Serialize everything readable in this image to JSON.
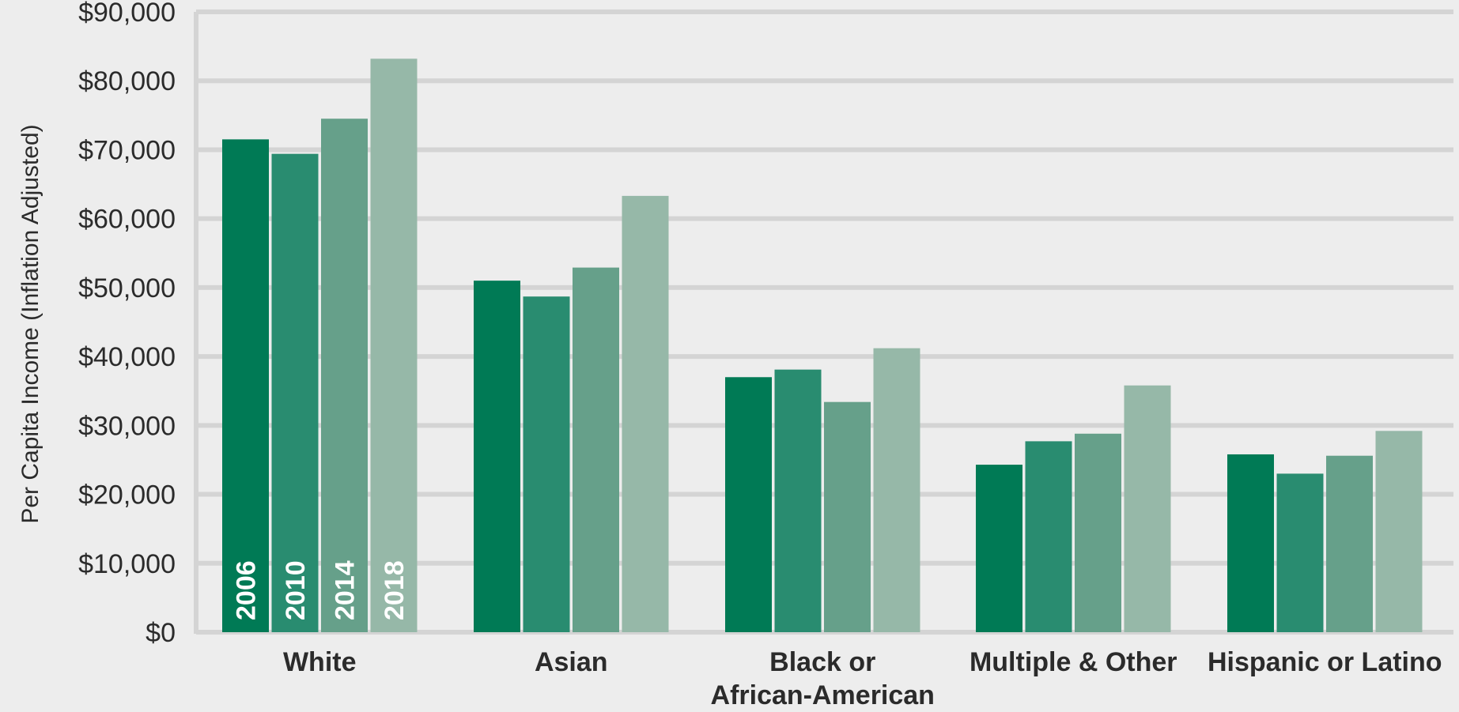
{
  "chart_data": {
    "type": "bar",
    "ylabel": "Per Capita Income (Inflation Adjusted)",
    "ylim": [
      0,
      90000
    ],
    "yticks": [
      0,
      10000,
      20000,
      30000,
      40000,
      50000,
      60000,
      70000,
      80000,
      90000
    ],
    "ytick_labels": [
      "$0",
      "$10,000",
      "$20,000",
      "$30,000",
      "$40,000",
      "$50,000",
      "$60,000",
      "$70,000",
      "$80,000",
      "$90,000"
    ],
    "grid": true,
    "legend": "in-bar labels on first category",
    "categories": [
      "White",
      "Asian",
      "Black or\nAfrican-American",
      "Multiple & Other",
      "Hispanic or Latino"
    ],
    "series": [
      {
        "name": "2006",
        "color": "#007a55",
        "values": [
          71500,
          51000,
          37000,
          24300,
          25800
        ]
      },
      {
        "name": "2010",
        "color": "#298c70",
        "values": [
          69400,
          48700,
          38100,
          27700,
          23000
        ]
      },
      {
        "name": "2014",
        "color": "#66a08a",
        "values": [
          74500,
          52900,
          33400,
          28800,
          25600
        ]
      },
      {
        "name": "2018",
        "color": "#96b8a8",
        "values": [
          83200,
          63300,
          41200,
          35800,
          29200
        ]
      }
    ]
  }
}
